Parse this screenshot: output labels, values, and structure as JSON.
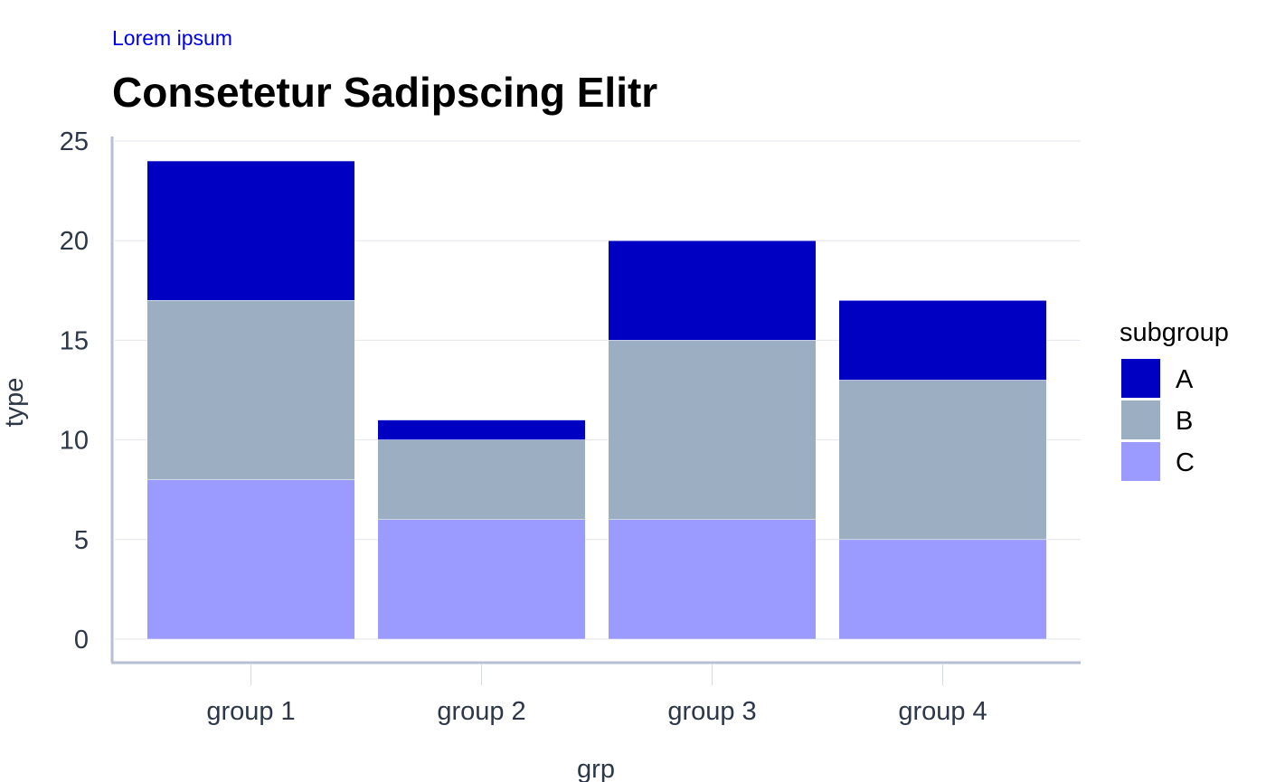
{
  "chart_data": {
    "type": "bar",
    "stacked": true,
    "subtitle": "Lorem ipsum",
    "title": "Consetetur Sadipscing Elitr",
    "xlabel": "grp",
    "ylabel": "type",
    "ylim": [
      0,
      25
    ],
    "yticks": [
      "0",
      "5",
      "10",
      "15",
      "20",
      "25"
    ],
    "categories": [
      "group 1",
      "group 2",
      "group 3",
      "group 4"
    ],
    "legend_title": "subgroup",
    "legend_position": "right",
    "grid": true,
    "series": [
      {
        "name": "A",
        "color": "#0000c2",
        "values": [
          7,
          1,
          5,
          4
        ]
      },
      {
        "name": "B",
        "color": "#9baec2",
        "values": [
          9,
          4,
          9,
          8
        ]
      },
      {
        "name": "C",
        "color": "#9a9aff",
        "values": [
          8,
          6,
          6,
          5
        ]
      }
    ]
  }
}
